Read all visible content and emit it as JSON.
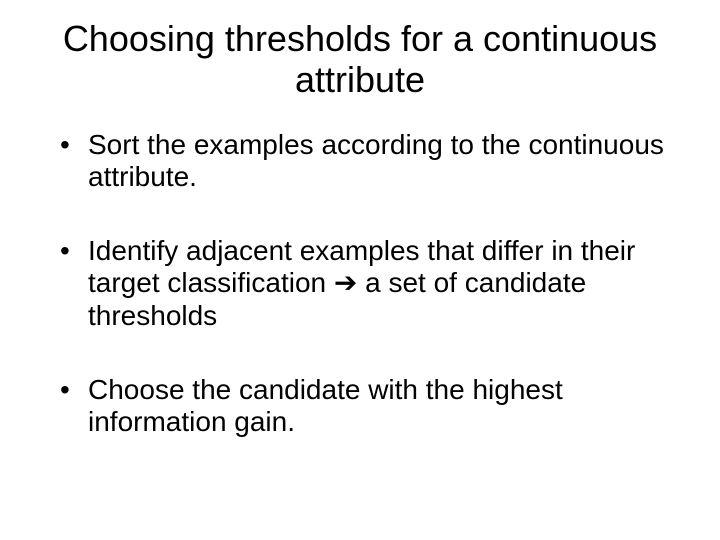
{
  "slide": {
    "title": "Choosing thresholds for a continuous attribute",
    "title_fontsize": 36,
    "title_align": "center",
    "bullets": [
      "Sort the examples according to the continuous attribute.",
      "Identify adjacent examples that differ in their target classification ➔ a set of candidate thresholds",
      "Choose the candidate with the highest information gain."
    ],
    "bullet_fontsize": 28,
    "bullet_marker": "•",
    "text_color": "#000000",
    "background_color": "#ffffff",
    "font_family": "Arial"
  }
}
